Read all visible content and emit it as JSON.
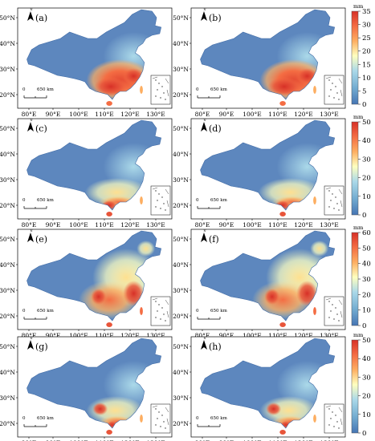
{
  "figure": {
    "panels": [
      {
        "letter": "(a)",
        "legend": 0
      },
      {
        "letter": "(b)",
        "legend": 0
      },
      {
        "letter": "(c)",
        "legend": 1
      },
      {
        "letter": "(d)",
        "legend": 1
      },
      {
        "letter": "(e)",
        "legend": 2
      },
      {
        "letter": "(f)",
        "legend": 2
      },
      {
        "letter": "(g)",
        "legend": 3
      },
      {
        "letter": "(h)",
        "legend": 3
      }
    ],
    "lat_labels": [
      "50°N",
      "40°N",
      "30°N",
      "20°N"
    ],
    "lon_labels": [
      "80°E",
      "90°E",
      "100°E",
      "110°E",
      "120°E",
      "130°E"
    ],
    "scale_bar": {
      "zero": "0",
      "distance": "650 km"
    },
    "north_letter": "N",
    "legends": [
      {
        "unit": "mm",
        "ticks": [
          "35",
          "30",
          "25",
          "20",
          "15",
          "10",
          "5",
          "0"
        ]
      },
      {
        "unit": "mm",
        "ticks": [
          "50",
          "40",
          "30",
          "20",
          "10",
          "0"
        ]
      },
      {
        "unit": "mm",
        "ticks": [
          "60",
          "50",
          "40",
          "30",
          "20",
          "10",
          "0"
        ]
      },
      {
        "unit": "mm",
        "ticks": [
          "50",
          "40",
          "30",
          "20",
          "10",
          "0"
        ]
      }
    ],
    "colormap": [
      "#4575b4",
      "#74add1",
      "#abd9e9",
      "#ffffbf",
      "#fdae61",
      "#f46d43",
      "#d73027"
    ]
  }
}
